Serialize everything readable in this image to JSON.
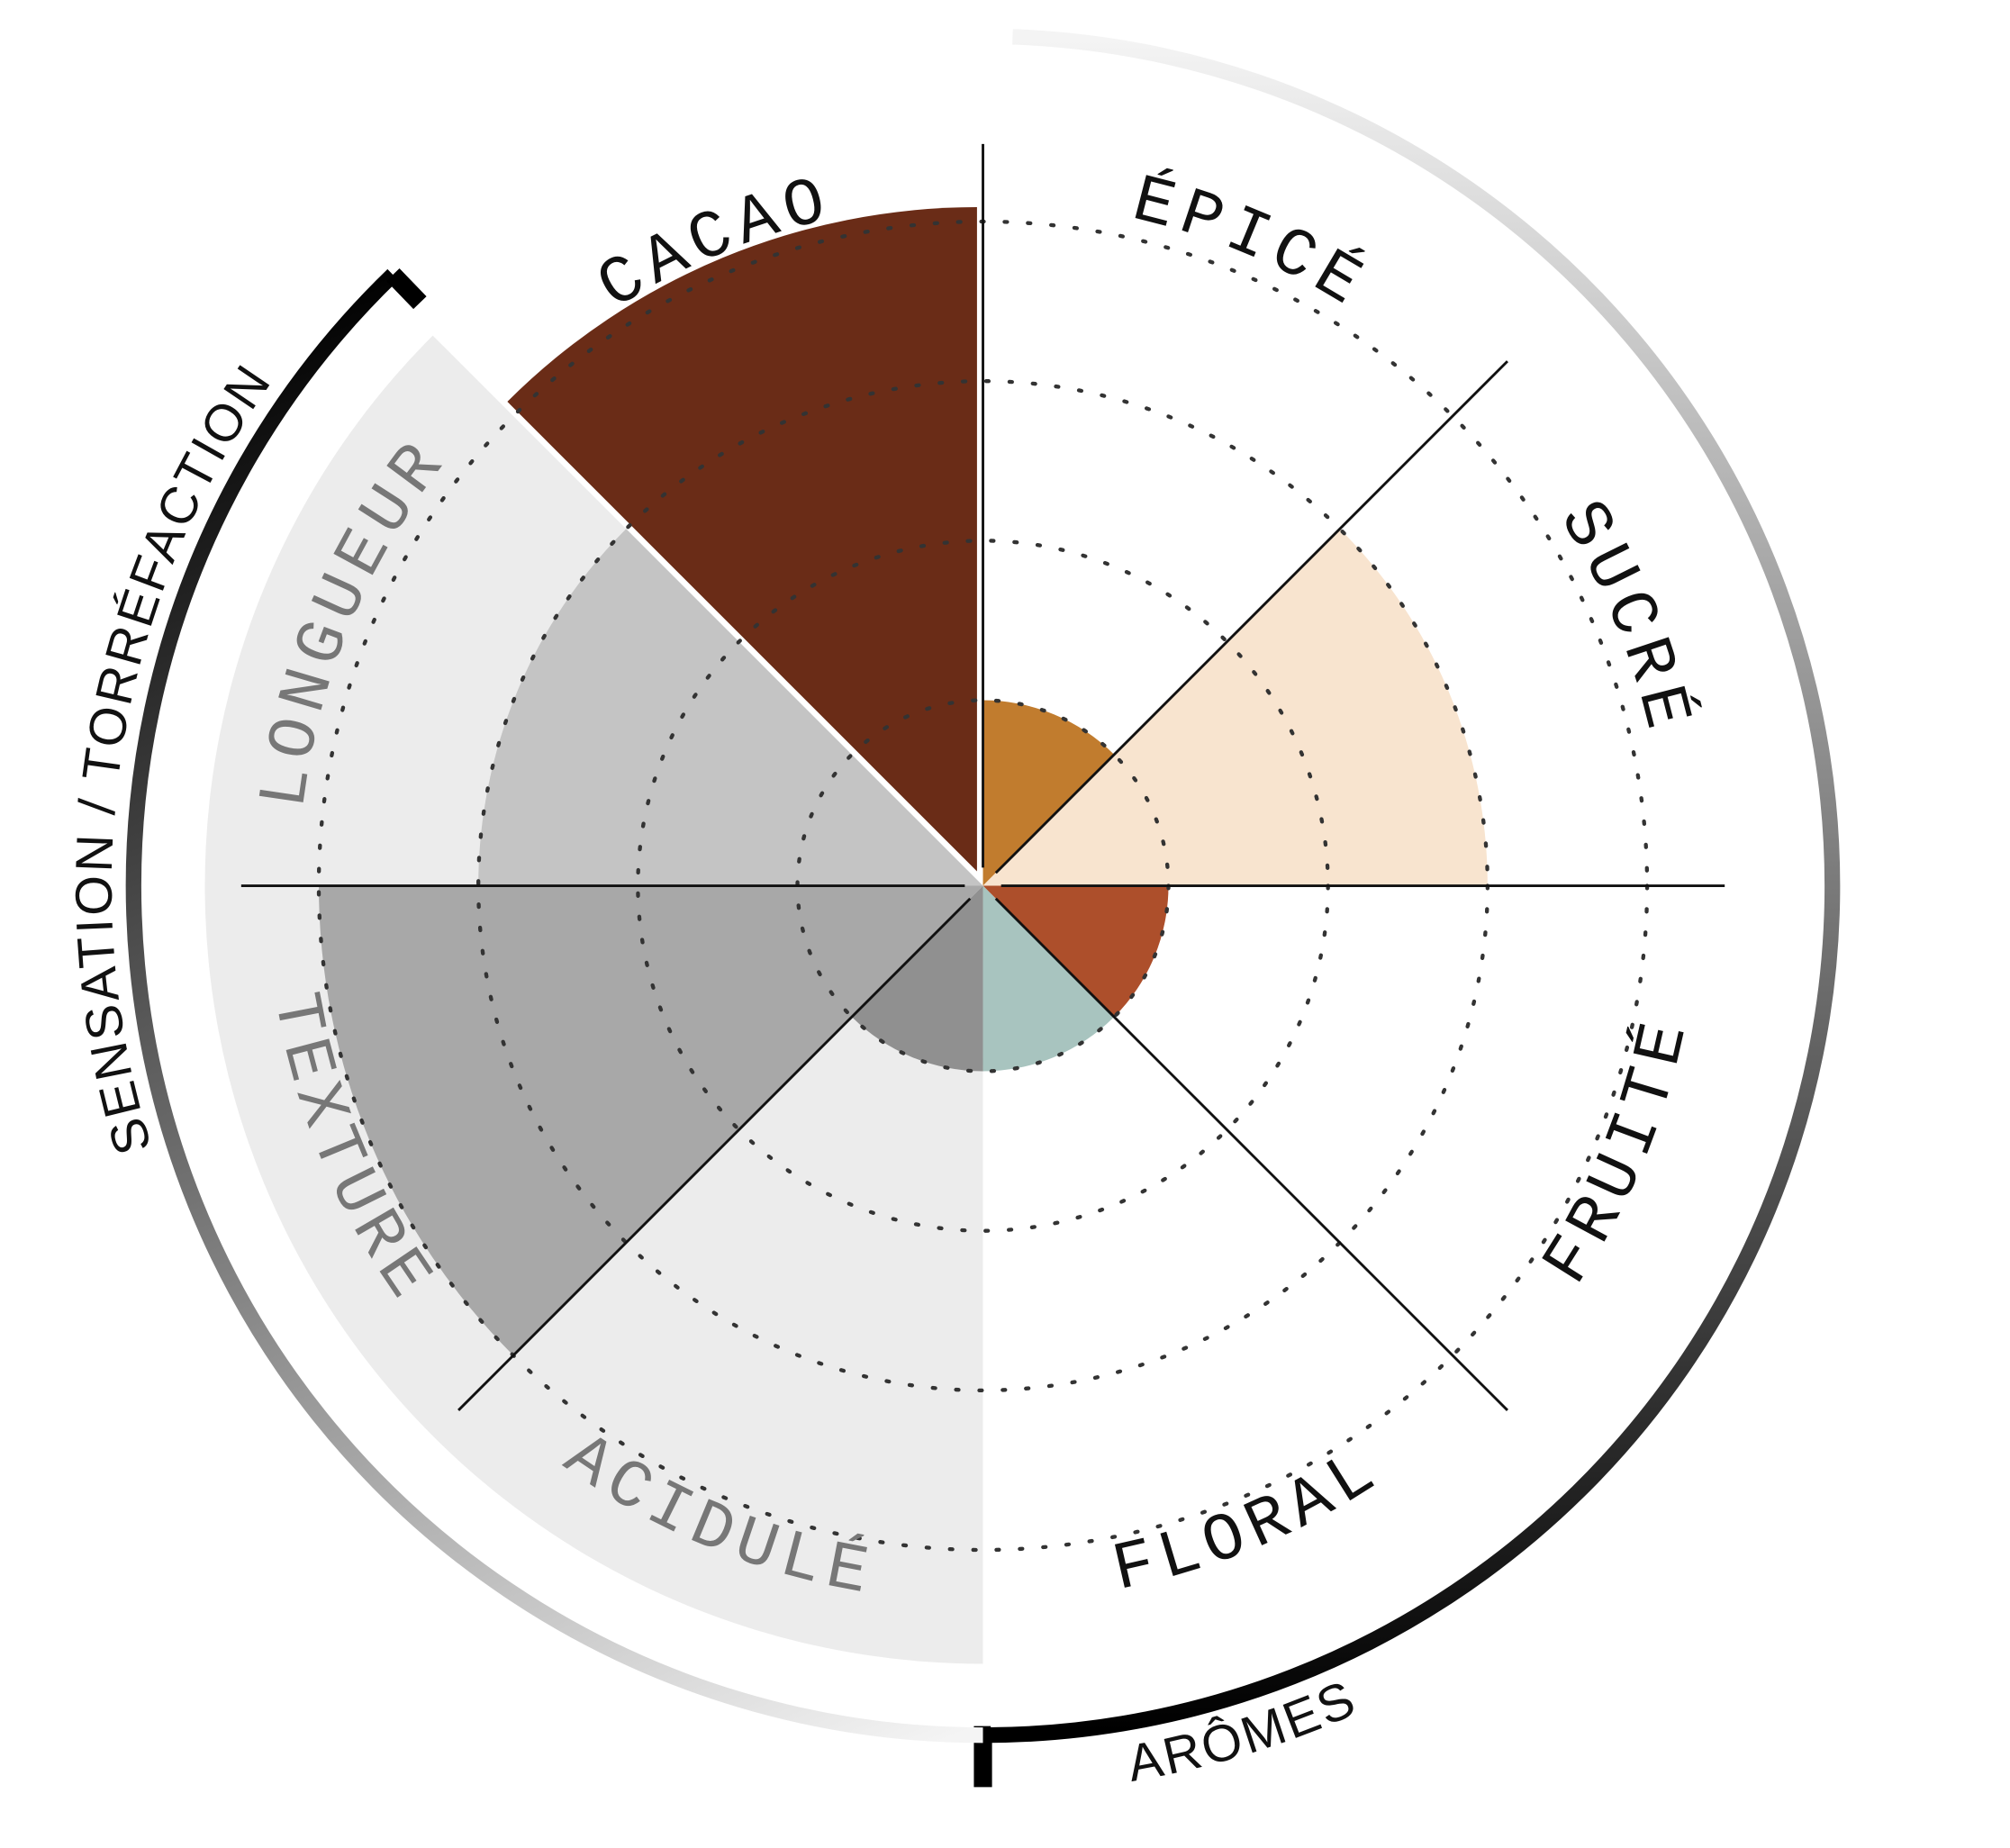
{
  "chart_data": {
    "type": "polar-area",
    "categories": [
      "ÉPICÉ",
      "SUCRÉ",
      "FRUITÉ",
      "FLORAL",
      "ACIDULÉ",
      "TEXTURE",
      "LONGUEUR",
      "CACAO"
    ],
    "values": [
      1,
      3,
      1,
      1,
      1,
      4,
      3,
      4
    ],
    "colors": [
      "#c17c2e",
      "#f8e4cf",
      "#ad4f2b",
      "#a8c4bf",
      "#909090",
      "#a8a8a8",
      "#c4c4c4",
      "#6a2c17"
    ],
    "label_colors": [
      "#111111",
      "#111111",
      "#111111",
      "#111111",
      "#777777",
      "#777777",
      "#777777",
      "#111111"
    ],
    "rlim": [
      0,
      4.6
    ],
    "rticks": [
      1,
      2,
      3,
      4
    ],
    "groups": [
      {
        "name": "ARÔMES"
      },
      {
        "name": "SENSATION / TORRÉFACTION"
      }
    ]
  }
}
